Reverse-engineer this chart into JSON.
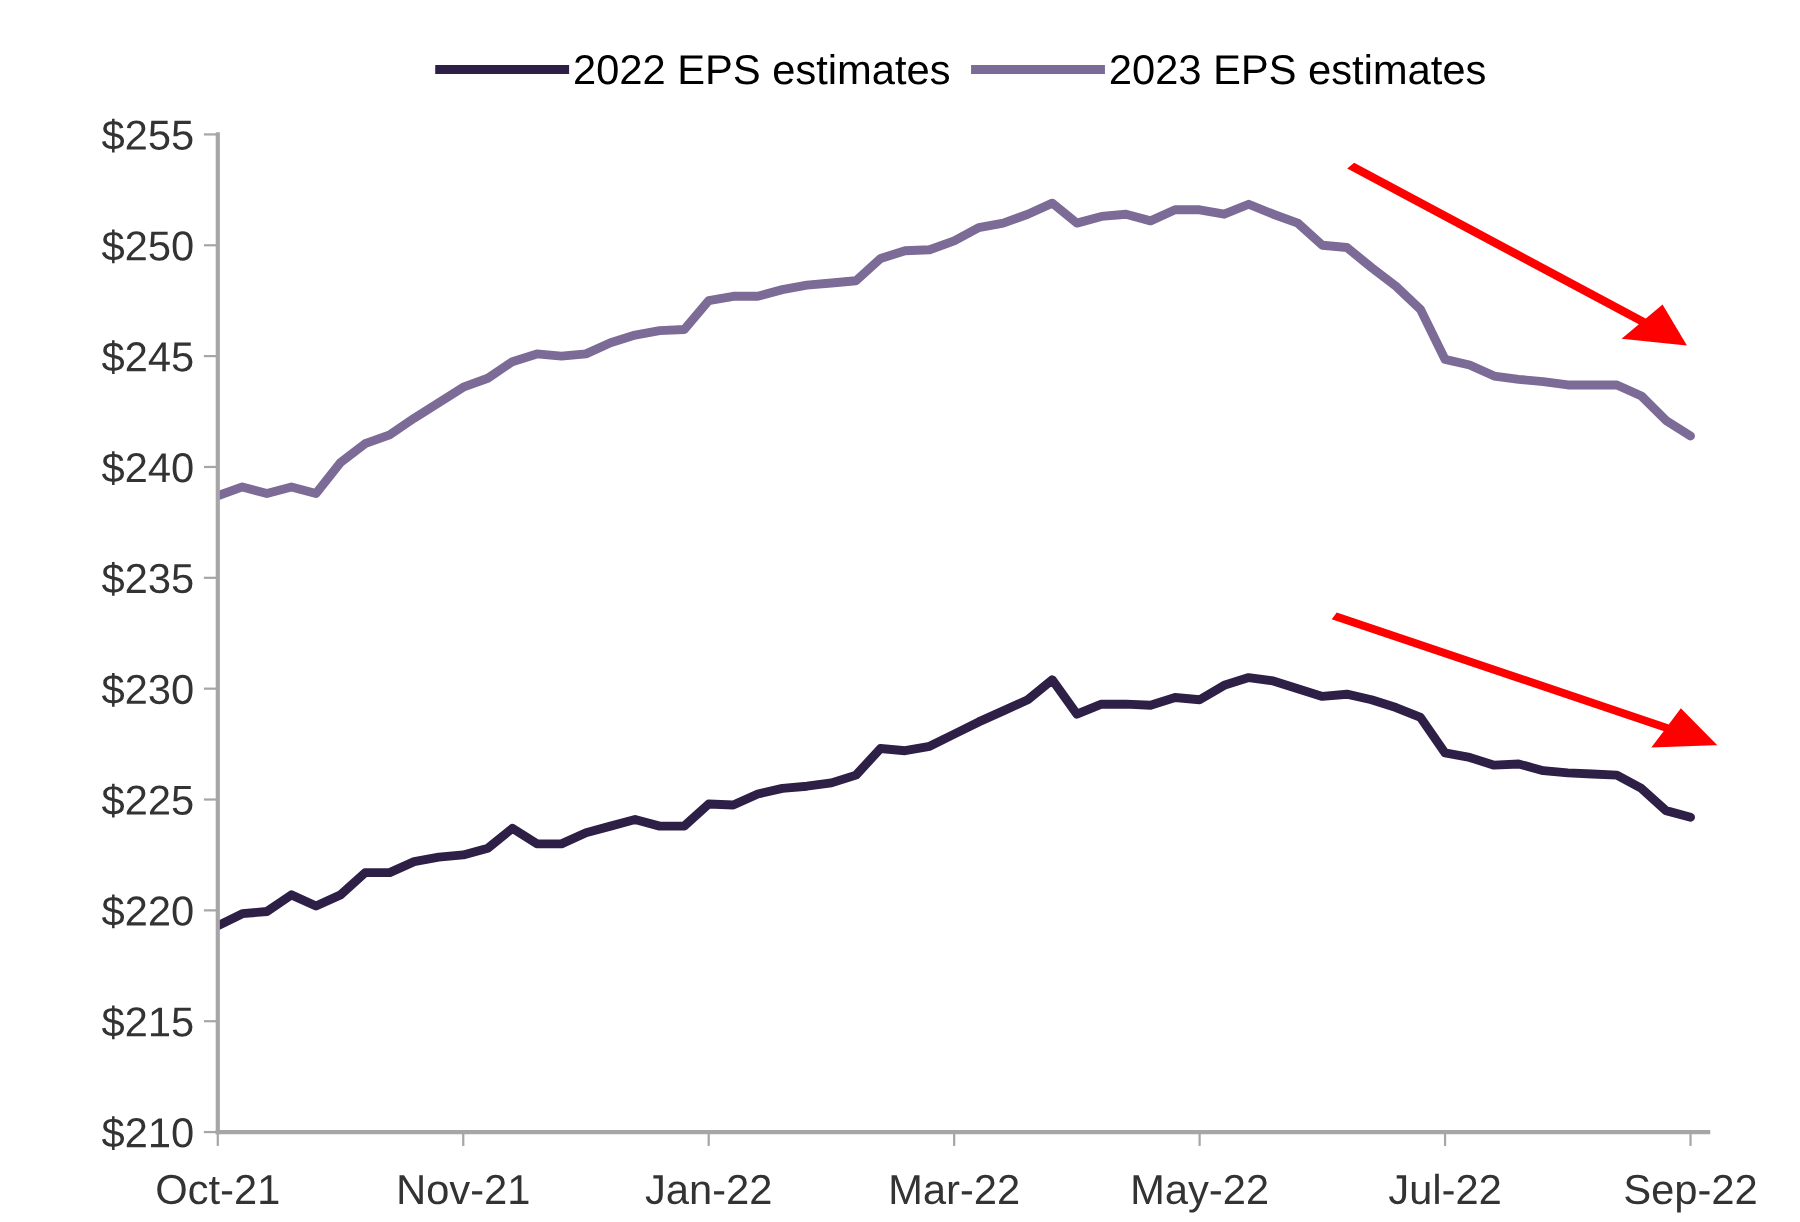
{
  "chart_data": {
    "type": "line",
    "categories": [
      "Oct-21",
      null,
      null,
      null,
      null,
      null,
      null,
      null,
      null,
      null,
      "Nov-21",
      null,
      null,
      null,
      null,
      null,
      null,
      null,
      null,
      null,
      "Jan-22",
      null,
      null,
      null,
      null,
      null,
      null,
      null,
      null,
      null,
      "Mar-22",
      null,
      null,
      null,
      null,
      null,
      null,
      null,
      null,
      null,
      "May-22",
      null,
      null,
      null,
      null,
      null,
      null,
      null,
      null,
      null,
      "Jul-22",
      null,
      null,
      null,
      null,
      null,
      null,
      null,
      null,
      null,
      "Sep-22"
    ],
    "ylim": [
      210,
      255
    ],
    "yticks": [
      {
        "value": 210,
        "label": "$210"
      },
      {
        "value": 215,
        "label": "$215"
      },
      {
        "value": 220,
        "label": "$220"
      },
      {
        "value": 225,
        "label": "$225"
      },
      {
        "value": 230,
        "label": "$230"
      },
      {
        "value": 235,
        "label": "$235"
      },
      {
        "value": 240,
        "label": "$240"
      },
      {
        "value": 245,
        "label": "$245"
      },
      {
        "value": 250,
        "label": "$250"
      },
      {
        "value": 255,
        "label": "$255"
      }
    ],
    "grid": false,
    "legend": "top",
    "marker": "none",
    "line_style": "solid",
    "series": [
      {
        "name": "2022 EPS estimates",
        "color": "#2e1f47",
        "values": [
          219.3,
          219.85,
          219.95,
          220.7,
          220.2,
          220.7,
          221.7,
          221.7,
          222.2,
          222.4,
          222.5,
          222.8,
          223.7,
          223.0,
          223.0,
          223.5,
          223.8,
          224.1,
          223.8,
          223.8,
          224.8,
          224.75,
          225.25,
          225.5,
          225.6,
          225.75,
          226.1,
          227.3,
          227.2,
          227.4,
          227.95,
          228.5,
          229.0,
          229.5,
          230.4,
          228.85,
          229.3,
          229.3,
          229.25,
          229.6,
          229.5,
          230.15,
          230.5,
          230.35,
          230.0,
          229.65,
          229.75,
          229.5,
          229.15,
          228.7,
          227.1,
          226.9,
          226.55,
          226.6,
          226.3,
          226.2,
          226.15,
          226.1,
          225.5,
          224.5,
          224.2
        ]
      },
      {
        "name": "2023 EPS estimates",
        "color": "#7b6b96",
        "values": [
          238.7,
          239.1,
          238.8,
          239.1,
          238.8,
          240.2,
          241.05,
          241.45,
          242.2,
          242.9,
          243.6,
          244.0,
          244.75,
          245.1,
          245.0,
          245.1,
          245.6,
          245.95,
          246.15,
          246.2,
          247.5,
          247.7,
          247.7,
          248.0,
          248.2,
          248.3,
          248.4,
          249.4,
          249.75,
          249.8,
          250.2,
          250.8,
          251.0,
          251.4,
          251.9,
          251.0,
          251.3,
          251.4,
          251.1,
          251.6,
          251.6,
          251.4,
          251.85,
          251.4,
          251.0,
          250.0,
          249.9,
          249.0,
          248.15,
          247.1,
          244.85,
          244.6,
          244.1,
          243.95,
          243.85,
          243.7,
          243.7,
          243.7,
          243.2,
          242.1,
          241.4
        ]
      }
    ]
  }
}
